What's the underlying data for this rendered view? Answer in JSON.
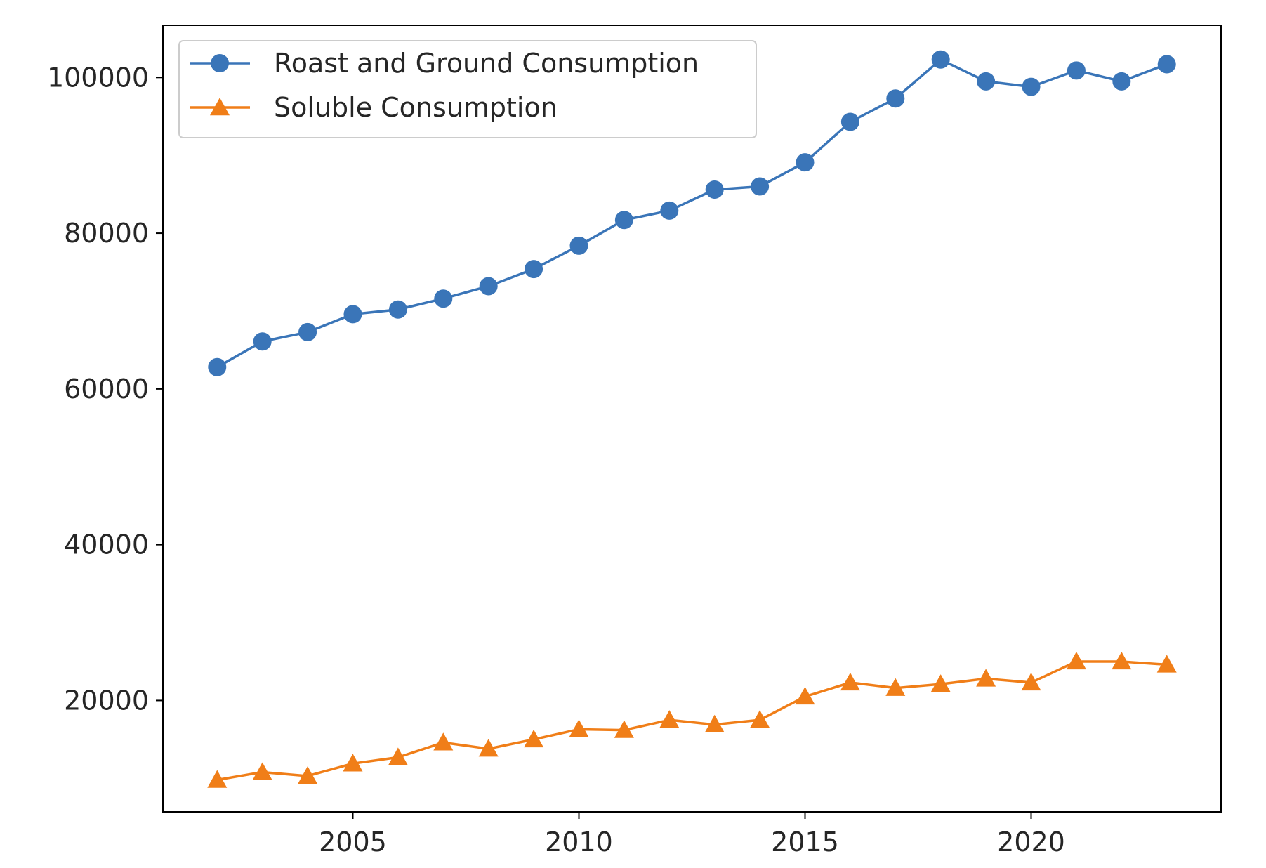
{
  "chart_data": {
    "type": "line",
    "title": "",
    "xlabel": "",
    "ylabel": "",
    "x": [
      2002,
      2003,
      2004,
      2005,
      2006,
      2007,
      2008,
      2009,
      2010,
      2011,
      2012,
      2013,
      2014,
      2015,
      2016,
      2017,
      2018,
      2019,
      2020,
      2021,
      2022,
      2023
    ],
    "xlim": [
      2000.8,
      2024.2
    ],
    "ylim": [
      5700,
      106700
    ],
    "x_ticks": [
      2005,
      2010,
      2015,
      2020
    ],
    "y_ticks": [
      20000,
      40000,
      60000,
      80000,
      100000
    ],
    "grid": false,
    "legend_position": "top-left",
    "series": [
      {
        "name": "Roast and Ground Consumption",
        "marker": "circle",
        "color": "#3a75b8",
        "values": [
          62800,
          66100,
          67300,
          69600,
          70200,
          71600,
          73200,
          75400,
          78400,
          81700,
          82900,
          85600,
          86000,
          89100,
          94300,
          97300,
          102300,
          99500,
          98800,
          100900,
          99500,
          101700
        ]
      },
      {
        "name": "Soluble Consumption",
        "marker": "triangle",
        "color": "#f07e18",
        "values": [
          9800,
          10800,
          10300,
          11900,
          12700,
          14600,
          13800,
          15000,
          16300,
          16200,
          17500,
          16900,
          17500,
          20500,
          22300,
          21600,
          22100,
          22800,
          22300,
          25000,
          25000,
          24600
        ]
      }
    ]
  }
}
